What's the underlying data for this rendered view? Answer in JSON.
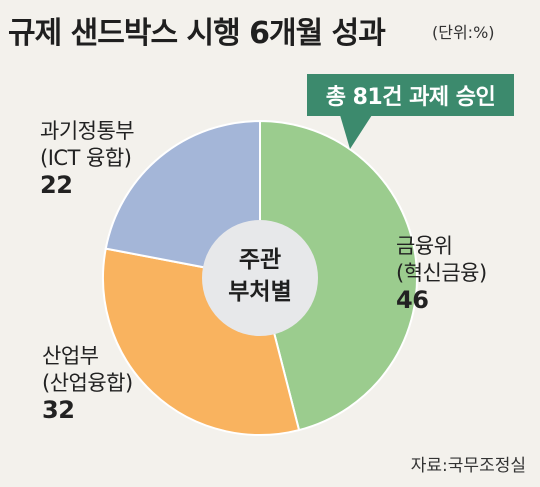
{
  "title": "규제 샌드박스 시행 6개월 성과",
  "unit": "(단위:%)",
  "callout": "총 81건 과제 승인",
  "source": "자료:국무조정실",
  "chart_data": {
    "type": "pie",
    "style": "donut",
    "center_label": [
      "주관",
      "부처별"
    ],
    "slices": [
      {
        "label": "금융위",
        "sublabel": "(혁신금융)",
        "value": 46,
        "color": "#9bcc8e"
      },
      {
        "label": "산업부",
        "sublabel": "(산업융합)",
        "value": 32,
        "color": "#f9b35f"
      },
      {
        "label": "과기정통부",
        "sublabel": "(ICT 융합)",
        "value": 22,
        "color": "#a4b6d8"
      }
    ]
  }
}
